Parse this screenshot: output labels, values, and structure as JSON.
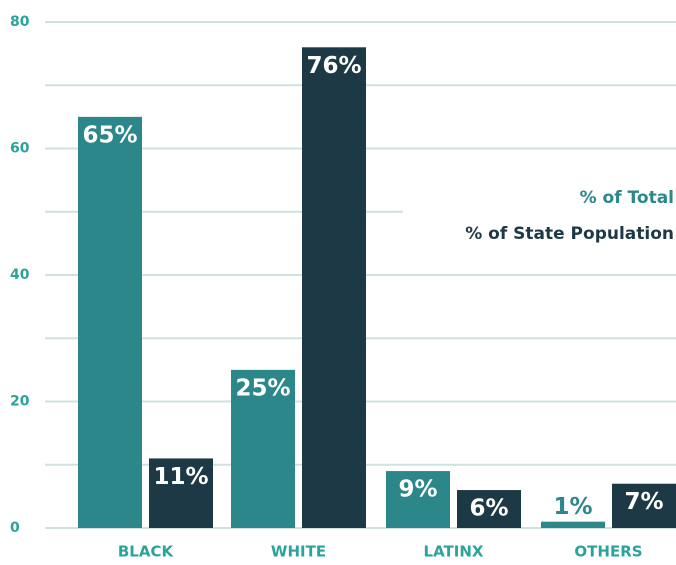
{
  "chart_data": {
    "type": "bar",
    "categories": [
      "BLACK",
      "WHITE",
      "LATINX",
      "OTHERS"
    ],
    "series": [
      {
        "name": "% of Total",
        "color": "#2b8789",
        "values": [
          65,
          25,
          9,
          1
        ],
        "value_labels": [
          "65%",
          "25%",
          "9%",
          "1%"
        ]
      },
      {
        "name": "% of State Population",
        "color": "#1e3946",
        "values": [
          11,
          76,
          6,
          7
        ],
        "value_labels": [
          "11%",
          "76%",
          "6%",
          "7%"
        ]
      }
    ],
    "ylim": [
      0,
      80
    ],
    "yticks": [
      0,
      20,
      40,
      60,
      80
    ],
    "minor_yticks": [
      10,
      30,
      50,
      70
    ],
    "grid": true,
    "legend": "right"
  }
}
